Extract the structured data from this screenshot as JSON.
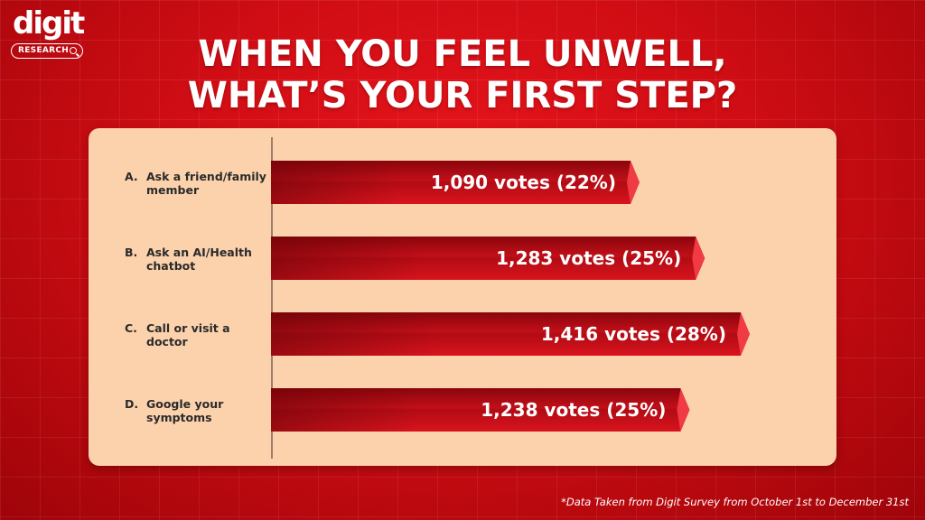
{
  "brand": {
    "name": "digit",
    "tag": "RESEARCH"
  },
  "title": {
    "line1": "WHEN YOU FEEL UNWELL,",
    "line2": "WHAT’S YOUR FIRST STEP?"
  },
  "footnote": "*Data Taken from Digit Survey from October 1st to December 31st",
  "colors": {
    "background": "#d00d14",
    "panel": "#fcd2ad",
    "bar": "#c8101a",
    "bar_tip": "#f03a44"
  },
  "chart_data": {
    "type": "bar",
    "orientation": "horizontal",
    "categories": [
      {
        "letter": "A.",
        "label": "Ask a friend/family member"
      },
      {
        "letter": "B.",
        "label": "Ask an AI/Health chatbot"
      },
      {
        "letter": "C.",
        "label": "Call or visit a doctor"
      },
      {
        "letter": "D.",
        "label": "Google your symptoms"
      }
    ],
    "values": [
      1090,
      1283,
      1416,
      1238
    ],
    "percents": [
      22,
      25,
      28,
      25
    ],
    "data_labels": [
      "1,090 votes (22%)",
      "1,283 votes (25%)",
      "1,416 votes (28%)",
      "1,238 votes (25%)"
    ],
    "xlim": [
      0,
      1416
    ],
    "grid": false,
    "legend": "none"
  }
}
